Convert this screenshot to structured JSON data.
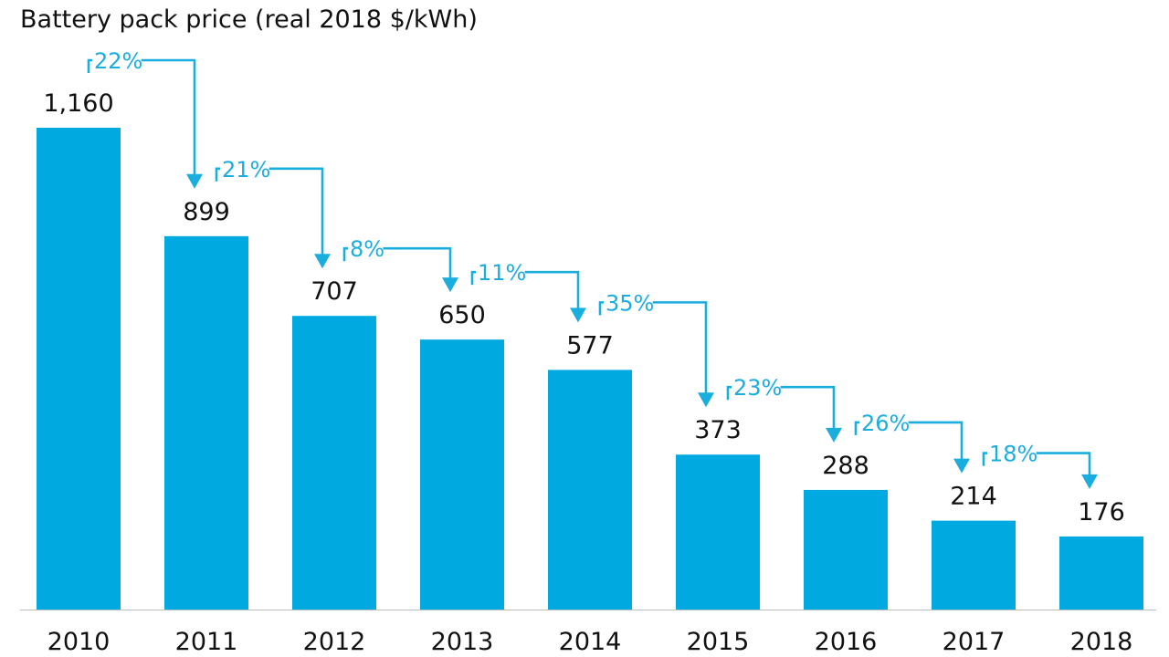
{
  "chart_data": {
    "type": "bar",
    "title": "Battery pack price (real 2018 $/kWh)",
    "xlabel": "",
    "ylabel": "",
    "ylim": [
      0,
      1160
    ],
    "categories": [
      "2010",
      "2011",
      "2012",
      "2013",
      "2014",
      "2015",
      "2016",
      "2017",
      "2018"
    ],
    "values": [
      1160,
      899,
      707,
      650,
      577,
      373,
      288,
      214,
      176
    ],
    "value_labels": [
      "1,160",
      "899",
      "707",
      "650",
      "577",
      "373",
      "288",
      "214",
      "176"
    ],
    "annotations": [
      "22%",
      "21%",
      "8%",
      "11%",
      "35%",
      "23%",
      "26%",
      "18%"
    ],
    "colors": {
      "bar": "#00A9E0",
      "annotation": "#1AAEDF",
      "text": "#111111",
      "axis": "#bdbdbd"
    }
  }
}
